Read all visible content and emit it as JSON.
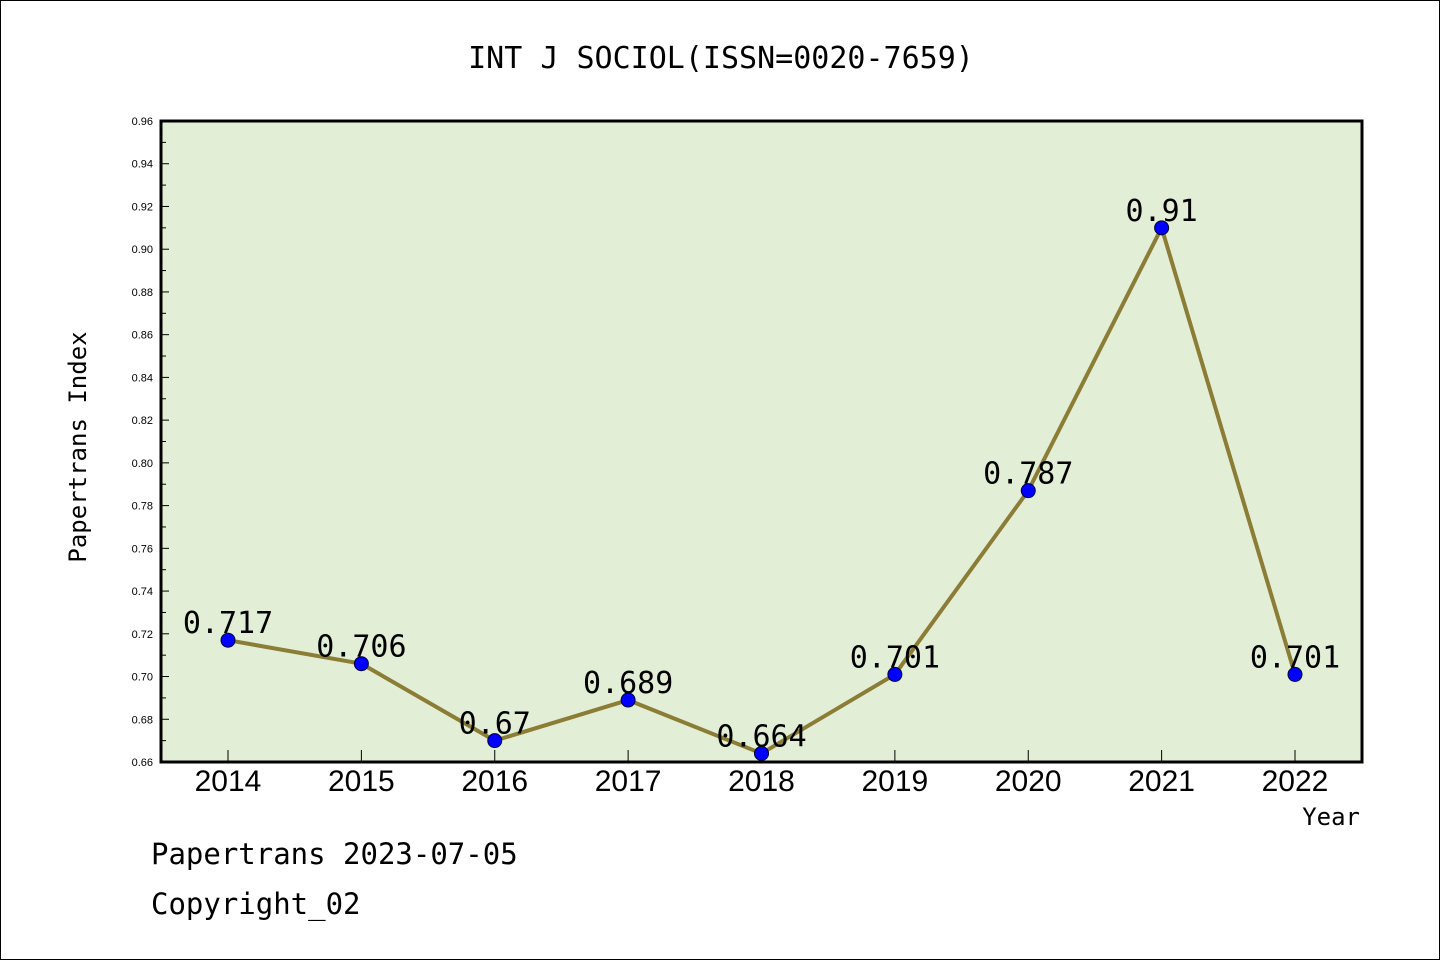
{
  "chart_data": {
    "type": "line",
    "title": "INT J SOCIOL(ISSN=0020-7659)",
    "xlabel": "Year",
    "ylabel": "Papertrans Index",
    "categories": [
      "2014",
      "2015",
      "2016",
      "2017",
      "2018",
      "2019",
      "2020",
      "2021",
      "2022"
    ],
    "series": [
      {
        "values": [
          0.717,
          0.706,
          0.67,
          0.689,
          0.664,
          0.701,
          0.787,
          0.91,
          0.701
        ]
      }
    ],
    "data_labels": [
      "0.717",
      "0.706",
      "0.67",
      "0.689",
      "0.664",
      "0.701",
      "0.787",
      "0.91",
      "0.701"
    ],
    "ylim": [
      0.66,
      0.96
    ],
    "yticks": [
      "0.66",
      "0.68",
      "0.70",
      "0.72",
      "0.74",
      "0.76",
      "0.78",
      "0.80",
      "0.82",
      "0.84",
      "0.86",
      "0.88",
      "0.90",
      "0.92",
      "0.94",
      "0.96"
    ],
    "grid": false,
    "legend": "none",
    "colors": {
      "plot_background": "#e2efd6",
      "line": "#8b7d35",
      "marker": "#0000ff"
    }
  },
  "footer": {
    "line1": "Papertrans 2023-07-05",
    "line2": "Copyright_02"
  }
}
